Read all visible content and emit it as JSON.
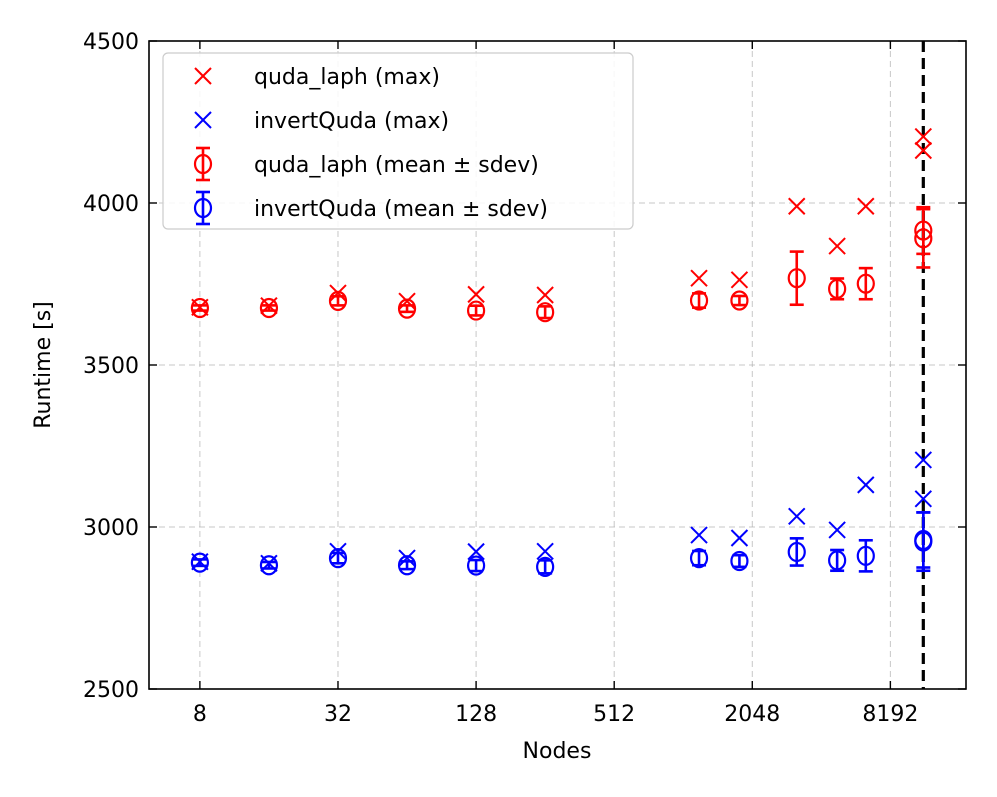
{
  "chart_data": {
    "type": "scatter",
    "xlabel": "Nodes",
    "ylabel": "Runtime [s]",
    "x_scale": "log2",
    "xlim": [
      4.8,
      17500
    ],
    "ylim": [
      2500,
      4500
    ],
    "x_ticks": [
      8,
      32,
      128,
      512,
      2048,
      8192
    ],
    "x_tick_labels": [
      "8",
      "32",
      "128",
      "512",
      "2048",
      "8192"
    ],
    "y_ticks": [
      2500,
      3000,
      3500,
      4000,
      4500
    ],
    "y_tick_labels": [
      "2500",
      "3000",
      "3500",
      "4000",
      "4500"
    ],
    "grid": true,
    "legend_position": "top-left",
    "reference_line": {
      "x": 11400,
      "style": "dashed",
      "color": "#000000"
    },
    "series": [
      {
        "name": "quda_laph (max)",
        "kind": "max",
        "marker": "x",
        "color": "#ff0000",
        "x": [
          8,
          16,
          32,
          64,
          128,
          256,
          1200,
          1800,
          3200,
          4800,
          6400,
          11400,
          11400
        ],
        "y": [
          3678,
          3683,
          3722,
          3697,
          3718,
          3716,
          3768,
          3763,
          3990,
          3867,
          3990,
          4205,
          4162
        ]
      },
      {
        "name": "invertQuda (max)",
        "kind": "max",
        "marker": "x",
        "color": "#0000ff",
        "x": [
          8,
          16,
          32,
          64,
          128,
          256,
          1200,
          1800,
          3200,
          4800,
          6400,
          11400,
          11400
        ],
        "y": [
          2893,
          2888,
          2925,
          2904,
          2924,
          2925,
          2975,
          2966,
          3033,
          2991,
          3130,
          3207,
          3087
        ]
      },
      {
        "name": "quda_laph (mean ± sdev)",
        "kind": "mean_sdev",
        "marker": "o",
        "color": "#ff0000",
        "x": [
          8,
          16,
          32,
          64,
          128,
          256,
          1200,
          1800,
          3200,
          4800,
          6400,
          11400,
          11400
        ],
        "y": [
          3676,
          3676,
          3698,
          3674,
          3668,
          3663,
          3699,
          3699,
          3768,
          3735,
          3751,
          3915,
          3891
        ],
        "sdev": [
          8,
          8,
          14,
          10,
          15,
          18,
          22,
          14,
          82,
          32,
          48,
          72,
          90
        ]
      },
      {
        "name": "invertQuda (mean ± sdev)",
        "kind": "mean_sdev",
        "marker": "o",
        "color": "#0000ff",
        "x": [
          8,
          16,
          32,
          64,
          128,
          256,
          1200,
          1800,
          3200,
          4800,
          6400,
          11400,
          11400
        ],
        "y": [
          2890,
          2882,
          2904,
          2882,
          2881,
          2877,
          2904,
          2895,
          2923,
          2897,
          2911,
          2960,
          2955
        ],
        "sdev": [
          10,
          10,
          16,
          12,
          17,
          20,
          22,
          18,
          42,
          32,
          48,
          85,
          90
        ]
      }
    ]
  }
}
